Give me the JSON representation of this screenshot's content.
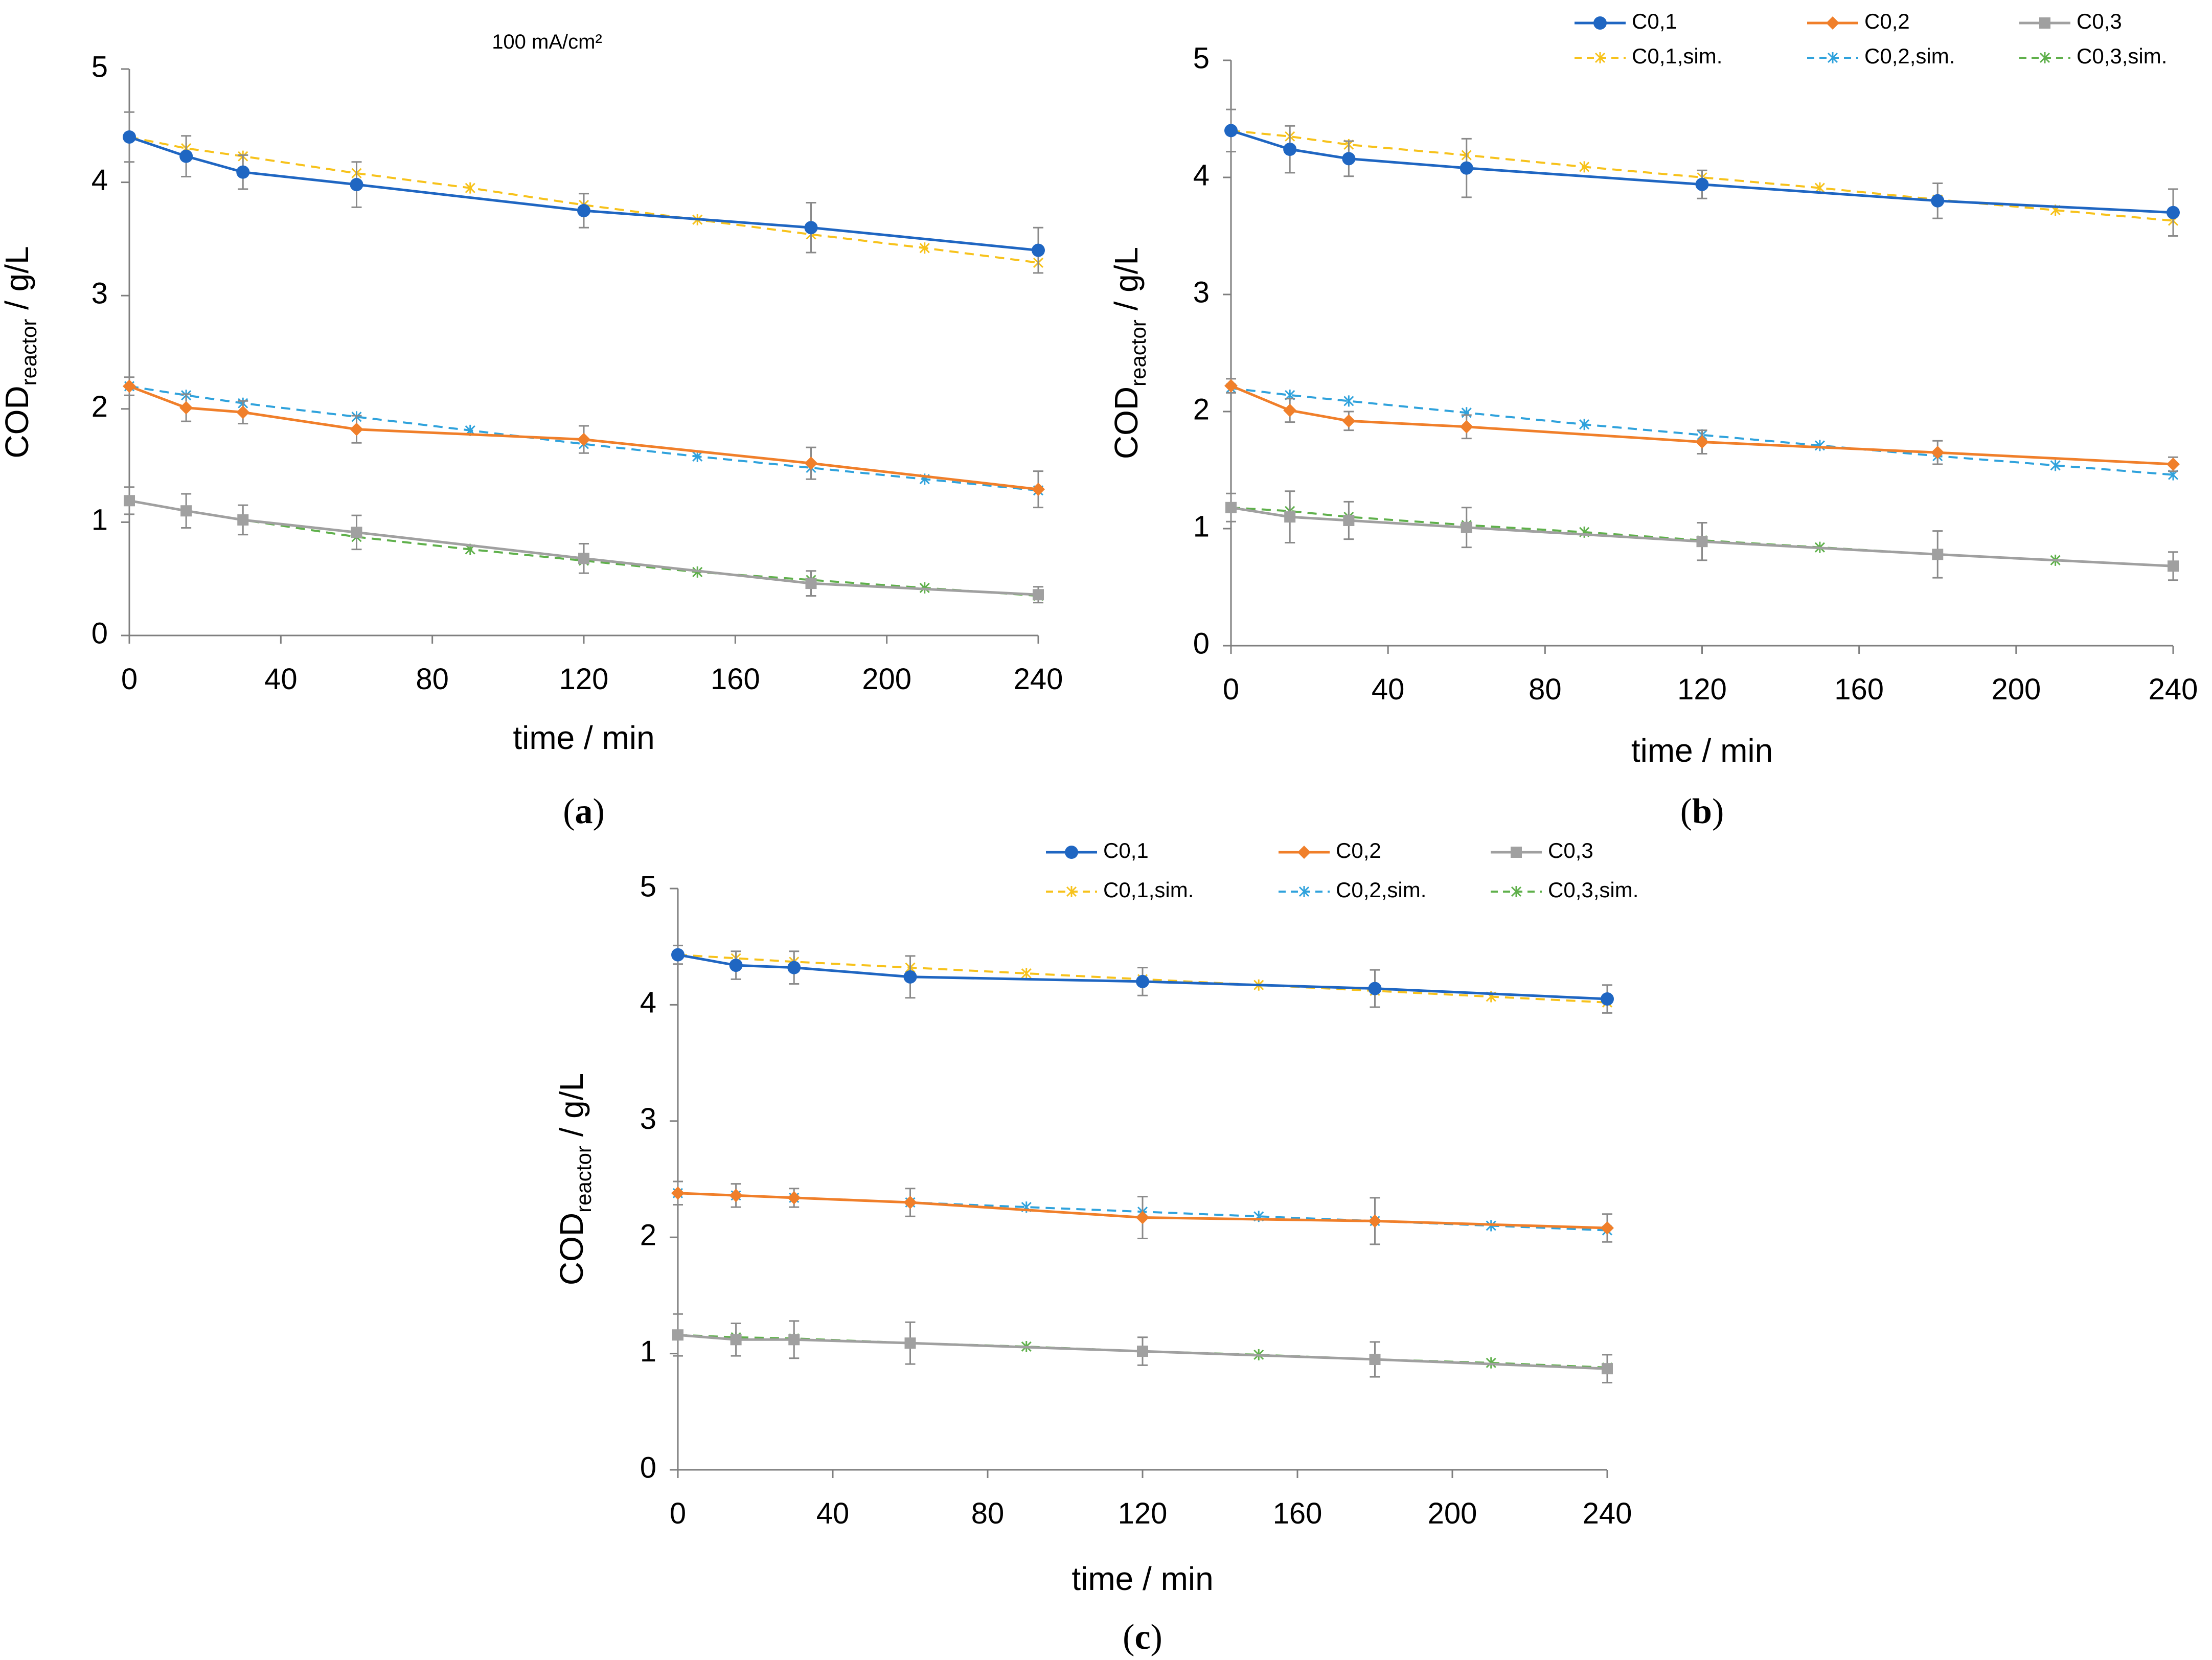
{
  "legend_items": [
    {
      "key": "c01",
      "label": "C0,1",
      "color": "#1f66c2",
      "dashed": false,
      "marker": "circle"
    },
    {
      "key": "c02",
      "label": "C0,2",
      "color": "#f07f2a",
      "dashed": false,
      "marker": "diamond"
    },
    {
      "key": "c03",
      "label": "C0,3",
      "color": "#a0a0a0",
      "dashed": false,
      "marker": "square"
    },
    {
      "key": "c01s",
      "label": "C0,1,sim.",
      "color": "#f7c21b",
      "dashed": true,
      "marker": "star"
    },
    {
      "key": "c02s",
      "label": "C0,2,sim.",
      "color": "#2fa2dc",
      "dashed": true,
      "marker": "star"
    },
    {
      "key": "c03s",
      "label": "C0,3,sim.",
      "color": "#5fb04b",
      "dashed": true,
      "marker": "star"
    }
  ],
  "chart_data": [
    {
      "id": "a",
      "type": "line",
      "panel_label": "a",
      "annotation": "100 mA/cm²",
      "show_legend": false,
      "xlabel": "time / min",
      "ylabel_main": "COD",
      "ylabel_sub": "reactor",
      "ylabel_unit": " / g/L",
      "xlim": [
        0,
        240
      ],
      "ylim": [
        0,
        5
      ],
      "xticks": [
        0,
        40,
        80,
        120,
        160,
        200,
        240
      ],
      "yticks": [
        0,
        1,
        2,
        3,
        4,
        5
      ],
      "series": [
        {
          "key": "c01",
          "x": [
            0,
            15,
            30,
            60,
            120,
            180,
            240
          ],
          "y": [
            4.4,
            4.23,
            4.09,
            3.98,
            3.75,
            3.6,
            3.4
          ],
          "err": [
            0.22,
            0.18,
            0.15,
            0.2,
            0.15,
            0.22,
            0.2
          ]
        },
        {
          "key": "c02",
          "x": [
            0,
            15,
            30,
            60,
            120,
            180,
            240
          ],
          "y": [
            2.2,
            2.01,
            1.97,
            1.82,
            1.73,
            1.52,
            1.29
          ],
          "err": [
            0.08,
            0.12,
            0.1,
            0.12,
            0.12,
            0.14,
            0.16
          ]
        },
        {
          "key": "c03",
          "x": [
            0,
            15,
            30,
            60,
            120,
            180,
            240
          ],
          "y": [
            1.19,
            1.1,
            1.02,
            0.91,
            0.68,
            0.46,
            0.36
          ],
          "err": [
            0.12,
            0.15,
            0.13,
            0.15,
            0.13,
            0.11,
            0.07
          ]
        },
        {
          "key": "c01s",
          "x": [
            0,
            15,
            30,
            60,
            90,
            120,
            150,
            180,
            210,
            240
          ],
          "y": [
            4.4,
            4.3,
            4.23,
            4.08,
            3.95,
            3.8,
            3.67,
            3.54,
            3.42,
            3.29
          ],
          "err": []
        },
        {
          "key": "c02s",
          "x": [
            0,
            15,
            30,
            60,
            90,
            120,
            150,
            180,
            210,
            240
          ],
          "y": [
            2.2,
            2.12,
            2.05,
            1.93,
            1.81,
            1.69,
            1.58,
            1.48,
            1.38,
            1.28
          ],
          "err": []
        },
        {
          "key": "c03s",
          "x": [
            0,
            15,
            30,
            60,
            90,
            120,
            150,
            180,
            210,
            240
          ],
          "y": [
            1.19,
            1.1,
            1.02,
            0.87,
            0.76,
            0.66,
            0.56,
            0.49,
            0.42,
            0.35
          ],
          "err": []
        }
      ]
    },
    {
      "id": "b",
      "type": "line",
      "panel_label": "b",
      "annotation": "",
      "show_legend": true,
      "xlabel": "time / min",
      "ylabel_main": "COD",
      "ylabel_sub": "reactor",
      "ylabel_unit": " / g/L",
      "xlim": [
        0,
        240
      ],
      "ylim": [
        0,
        5
      ],
      "xticks": [
        0,
        40,
        80,
        120,
        160,
        200,
        240
      ],
      "yticks": [
        0,
        1,
        2,
        3,
        4,
        5
      ],
      "series": [
        {
          "key": "c01",
          "x": [
            0,
            15,
            30,
            60,
            120,
            180,
            240
          ],
          "y": [
            4.4,
            4.24,
            4.16,
            4.08,
            3.94,
            3.8,
            3.7
          ],
          "err": [
            0.18,
            0.2,
            0.15,
            0.25,
            0.12,
            0.15,
            0.2
          ]
        },
        {
          "key": "c02",
          "x": [
            0,
            15,
            30,
            60,
            120,
            180,
            240
          ],
          "y": [
            2.22,
            2.01,
            1.92,
            1.87,
            1.74,
            1.65,
            1.55
          ],
          "err": [
            0.06,
            0.1,
            0.08,
            0.1,
            0.1,
            0.1,
            0.06
          ]
        },
        {
          "key": "c03",
          "x": [
            0,
            15,
            30,
            60,
            120,
            180,
            240
          ],
          "y": [
            1.18,
            1.1,
            1.07,
            1.01,
            0.89,
            0.78,
            0.68
          ],
          "err": [
            0.12,
            0.22,
            0.16,
            0.17,
            0.16,
            0.2,
            0.12
          ]
        },
        {
          "key": "c01s",
          "x": [
            0,
            15,
            30,
            60,
            90,
            120,
            150,
            180,
            210,
            240
          ],
          "y": [
            4.4,
            4.35,
            4.28,
            4.19,
            4.09,
            4.0,
            3.91,
            3.81,
            3.72,
            3.63
          ],
          "err": []
        },
        {
          "key": "c02s",
          "x": [
            0,
            15,
            30,
            60,
            90,
            120,
            150,
            180,
            210,
            240
          ],
          "y": [
            2.2,
            2.14,
            2.09,
            1.99,
            1.89,
            1.8,
            1.71,
            1.62,
            1.54,
            1.46
          ],
          "err": []
        },
        {
          "key": "c03s",
          "x": [
            0,
            15,
            30,
            60,
            90,
            120,
            150,
            180,
            210,
            240
          ],
          "y": [
            1.18,
            1.15,
            1.1,
            1.03,
            0.97,
            0.9,
            0.84,
            0.78,
            0.73,
            0.68
          ],
          "err": []
        }
      ]
    },
    {
      "id": "c",
      "type": "line",
      "panel_label": "c",
      "annotation": "",
      "show_legend": true,
      "xlabel": "time / min",
      "ylabel_main": "COD",
      "ylabel_sub": "reactor",
      "ylabel_unit": " / g/L",
      "xlim": [
        0,
        240
      ],
      "ylim": [
        0,
        5
      ],
      "xticks": [
        0,
        40,
        80,
        120,
        160,
        200,
        240
      ],
      "yticks": [
        0,
        1,
        2,
        3,
        4,
        5
      ],
      "series": [
        {
          "key": "c01",
          "x": [
            0,
            15,
            30,
            60,
            120,
            180,
            240
          ],
          "y": [
            4.43,
            4.34,
            4.32,
            4.24,
            4.2,
            4.14,
            4.05
          ],
          "err": [
            0.08,
            0.12,
            0.14,
            0.18,
            0.12,
            0.16,
            0.12
          ]
        },
        {
          "key": "c02",
          "x": [
            0,
            15,
            30,
            60,
            120,
            180,
            240
          ],
          "y": [
            2.38,
            2.36,
            2.34,
            2.3,
            2.17,
            2.14,
            2.08
          ],
          "err": [
            0.1,
            0.1,
            0.08,
            0.12,
            0.18,
            0.2,
            0.12
          ]
        },
        {
          "key": "c03",
          "x": [
            0,
            15,
            30,
            60,
            120,
            180,
            240
          ],
          "y": [
            1.16,
            1.12,
            1.12,
            1.09,
            1.02,
            0.95,
            0.87
          ],
          "err": [
            0.18,
            0.14,
            0.16,
            0.18,
            0.12,
            0.15,
            0.12
          ]
        },
        {
          "key": "c01s",
          "x": [
            0,
            15,
            30,
            60,
            90,
            120,
            150,
            180,
            210,
            240
          ],
          "y": [
            4.43,
            4.4,
            4.37,
            4.32,
            4.27,
            4.22,
            4.17,
            4.12,
            4.07,
            4.02
          ],
          "err": []
        },
        {
          "key": "c02s",
          "x": [
            0,
            15,
            30,
            60,
            90,
            120,
            150,
            180,
            210,
            240
          ],
          "y": [
            2.38,
            2.36,
            2.34,
            2.3,
            2.26,
            2.22,
            2.18,
            2.14,
            2.1,
            2.06
          ],
          "err": []
        },
        {
          "key": "c03s",
          "x": [
            0,
            15,
            30,
            60,
            90,
            120,
            150,
            180,
            210,
            240
          ],
          "y": [
            1.16,
            1.14,
            1.13,
            1.09,
            1.06,
            1.02,
            0.99,
            0.95,
            0.92,
            0.88
          ],
          "err": []
        }
      ]
    }
  ]
}
